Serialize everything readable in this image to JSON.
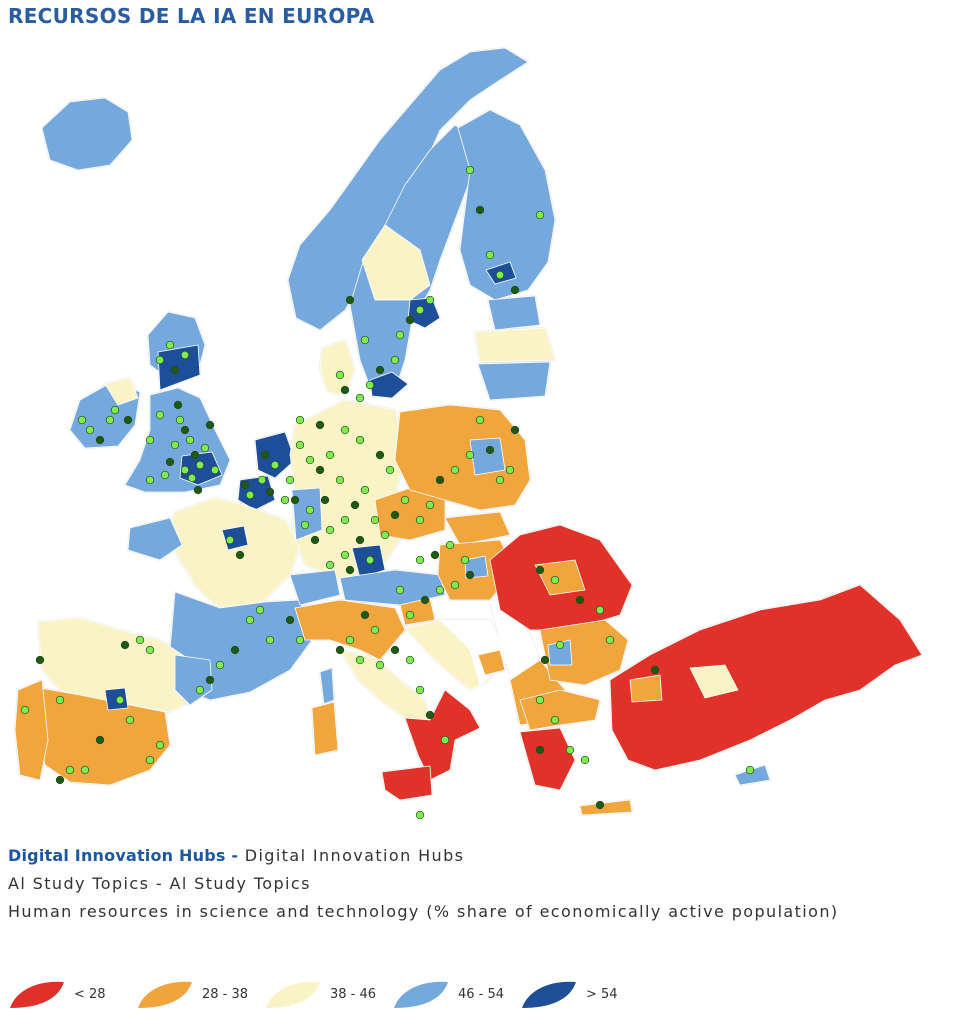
{
  "title": "RECURSOS DE LA IA EN EUROPA",
  "layers": {
    "hubs_bold": "Digital Innovation Hubs -",
    "hubs_rest": "Digital Innovation Hubs",
    "topics": "Al Study Topics - Al Study Topics",
    "hrst": "Human resources in science and technology (% share of economically active population)"
  },
  "legend": [
    {
      "label": "< 28",
      "color": "#e1302a"
    },
    {
      "label": "28 - 38",
      "color": "#f0a53c"
    },
    {
      "label": "38 - 46",
      "color": "#f9f3c6"
    },
    {
      "label": "46 - 54",
      "color": "#74a9de"
    },
    {
      "label": "> 54",
      "color": "#1f4f97"
    }
  ],
  "point_colors": {
    "hub": "#7ded4d",
    "topic": "#1d5a14",
    "stroke": "#28421c"
  }
}
